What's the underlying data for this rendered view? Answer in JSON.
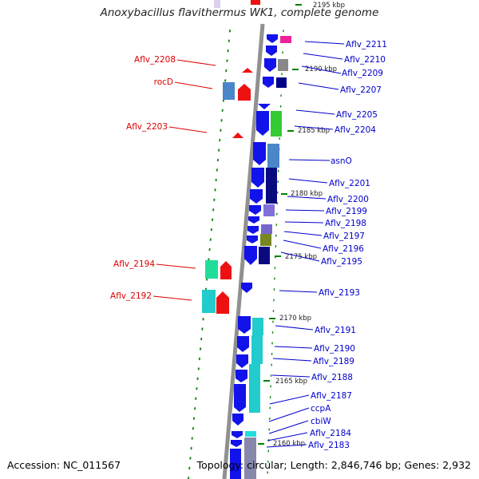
{
  "title": "Anoxybacillus flavithermus WK1, complete genome",
  "accession": "Accession: NC_011567",
  "topology": "Topology: circular; Length: 2,846,746 bp; Genes: 2,932",
  "kbp_marks": [
    "2195 kbp",
    "2190 kbp",
    "2185 kbp",
    "2180 kbp",
    "2175 kbp",
    "2170 kbp",
    "2165 kbp",
    "2160 kbp"
  ],
  "left_labels": [
    "Aflv_2208",
    "rocD",
    "Aflv_2203",
    "Aflv_2194",
    "Aflv_2192"
  ],
  "right_labels": [
    "Aflv_2211",
    "Aflv_2210",
    "Aflv_2209",
    "Aflv_2207",
    "Aflv_2205",
    "Aflv_2204",
    "asnO",
    "Aflv_2201",
    "Aflv_2200",
    "Aflv_2199",
    "Aflv_2198",
    "Aflv_2197",
    "Aflv_2196",
    "Aflv_2195",
    "Aflv_2193",
    "Aflv_2191",
    "Aflv_2190",
    "Aflv_2189",
    "Aflv_2188",
    "Aflv_2187",
    "ccpA",
    "cbiW",
    "Aflv_2184",
    "Aflv_2183"
  ],
  "colors": {
    "backbone": "#909090",
    "forward_gene": "#1010e8",
    "reverse_gene": "#ee1111",
    "left_label": "#dd0000",
    "right_label": "#0000cc",
    "tick": "#008000"
  }
}
